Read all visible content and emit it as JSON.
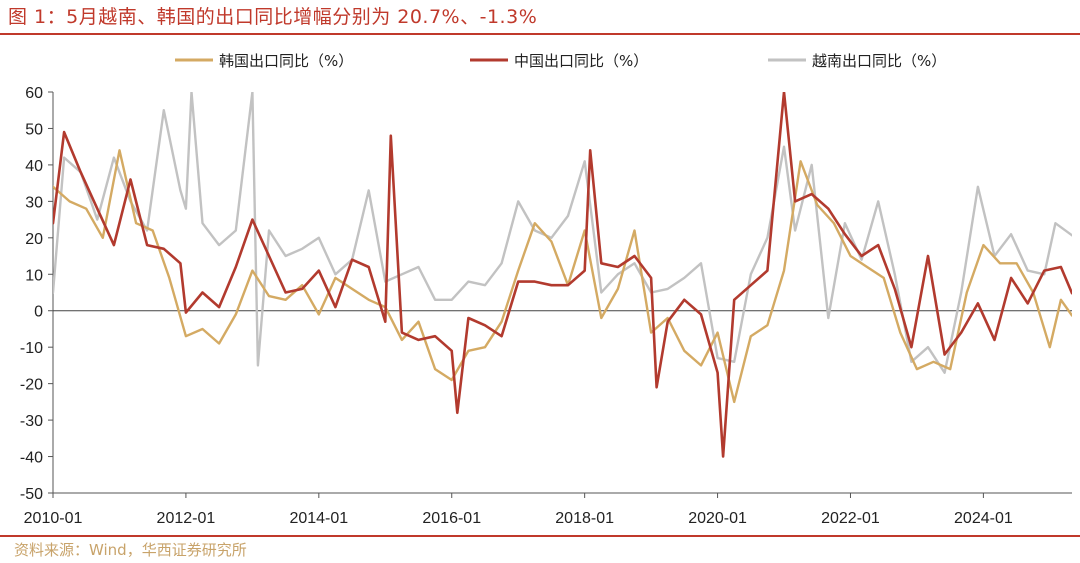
{
  "header": {
    "title": "图 1：5月越南、韩国的出口同比增幅分别为 20.7%、-1.3%"
  },
  "footer": {
    "source": "资料来源：Wind，华西证券研究所"
  },
  "colors": {
    "accent": "#c0392b",
    "korea": "#d4aa63",
    "china": "#b23a2e",
    "vietnam": "#c2c2c2"
  },
  "chart_data": {
    "type": "line",
    "title": "",
    "xlabel": "",
    "ylabel": "",
    "ylim": [
      -50,
      60
    ],
    "yticks": [
      -50,
      -40,
      -30,
      -20,
      -10,
      0,
      10,
      20,
      30,
      40,
      50,
      60
    ],
    "xlim": [
      "2010-01",
      "2025-05"
    ],
    "xticks": [
      "2010-01",
      "2012-01",
      "2014-01",
      "2016-01",
      "2018-01",
      "2020-01",
      "2022-01",
      "2024-01"
    ],
    "legend_position": "top",
    "grid": false,
    "series": [
      {
        "name": "韩国出口同比（%）",
        "color": "#d4aa63",
        "points": [
          [
            "2010-01",
            34
          ],
          [
            "2010-04",
            30
          ],
          [
            "2010-07",
            28
          ],
          [
            "2010-10",
            20
          ],
          [
            "2011-01",
            44
          ],
          [
            "2011-04",
            24
          ],
          [
            "2011-07",
            22
          ],
          [
            "2011-10",
            9
          ],
          [
            "2012-01",
            -7
          ],
          [
            "2012-04",
            -5
          ],
          [
            "2012-07",
            -9
          ],
          [
            "2012-10",
            -1
          ],
          [
            "2013-01",
            11
          ],
          [
            "2013-04",
            4
          ],
          [
            "2013-07",
            3
          ],
          [
            "2013-10",
            7
          ],
          [
            "2014-01",
            -1
          ],
          [
            "2014-04",
            9
          ],
          [
            "2014-07",
            6
          ],
          [
            "2014-10",
            3
          ],
          [
            "2015-01",
            1
          ],
          [
            "2015-04",
            -8
          ],
          [
            "2015-07",
            -3
          ],
          [
            "2015-10",
            -16
          ],
          [
            "2016-01",
            -19
          ],
          [
            "2016-04",
            -11
          ],
          [
            "2016-07",
            -10
          ],
          [
            "2016-10",
            -3
          ],
          [
            "2017-01",
            11
          ],
          [
            "2017-04",
            24
          ],
          [
            "2017-07",
            19
          ],
          [
            "2017-10",
            7
          ],
          [
            "2018-01",
            22
          ],
          [
            "2018-04",
            -2
          ],
          [
            "2018-07",
            6
          ],
          [
            "2018-10",
            22
          ],
          [
            "2019-01",
            -6
          ],
          [
            "2019-04",
            -2
          ],
          [
            "2019-07",
            -11
          ],
          [
            "2019-10",
            -15
          ],
          [
            "2020-01",
            -6
          ],
          [
            "2020-04",
            -25
          ],
          [
            "2020-07",
            -7
          ],
          [
            "2020-10",
            -4
          ],
          [
            "2021-01",
            11
          ],
          [
            "2021-04",
            41
          ],
          [
            "2021-07",
            29
          ],
          [
            "2021-10",
            24
          ],
          [
            "2022-01",
            15
          ],
          [
            "2022-04",
            12
          ],
          [
            "2022-07",
            9
          ],
          [
            "2022-10",
            -6
          ],
          [
            "2023-01",
            -16
          ],
          [
            "2023-04",
            -14
          ],
          [
            "2023-07",
            -16
          ],
          [
            "2023-10",
            5
          ],
          [
            "2024-01",
            18
          ],
          [
            "2024-04",
            13
          ],
          [
            "2024-07",
            13
          ],
          [
            "2024-10",
            5
          ],
          [
            "2025-01",
            -10
          ],
          [
            "2025-03",
            3
          ],
          [
            "2025-05",
            -1.3
          ]
        ]
      },
      {
        "name": "中国出口同比（%）",
        "color": "#b23a2e",
        "points": [
          [
            "2010-01",
            24
          ],
          [
            "2010-03",
            49
          ],
          [
            "2010-06",
            38
          ],
          [
            "2010-09",
            28
          ],
          [
            "2010-12",
            18
          ],
          [
            "2011-03",
            36
          ],
          [
            "2011-06",
            18
          ],
          [
            "2011-09",
            17
          ],
          [
            "2011-12",
            13
          ],
          [
            "2012-01",
            -0.5
          ],
          [
            "2012-04",
            5
          ],
          [
            "2012-07",
            1
          ],
          [
            "2012-10",
            12
          ],
          [
            "2013-01",
            25
          ],
          [
            "2013-04",
            15
          ],
          [
            "2013-07",
            5
          ],
          [
            "2013-10",
            6
          ],
          [
            "2014-01",
            11
          ],
          [
            "2014-04",
            1
          ],
          [
            "2014-07",
            14
          ],
          [
            "2014-10",
            12
          ],
          [
            "2015-01",
            -3
          ],
          [
            "2015-02",
            48
          ],
          [
            "2015-04",
            -6
          ],
          [
            "2015-07",
            -8
          ],
          [
            "2015-10",
            -7
          ],
          [
            "2016-01",
            -11
          ],
          [
            "2016-02",
            -28
          ],
          [
            "2016-04",
            -2
          ],
          [
            "2016-07",
            -4
          ],
          [
            "2016-10",
            -7
          ],
          [
            "2017-01",
            8
          ],
          [
            "2017-04",
            8
          ],
          [
            "2017-07",
            7
          ],
          [
            "2017-10",
            7
          ],
          [
            "2018-01",
            11
          ],
          [
            "2018-02",
            44
          ],
          [
            "2018-04",
            13
          ],
          [
            "2018-07",
            12
          ],
          [
            "2018-10",
            15
          ],
          [
            "2019-01",
            9
          ],
          [
            "2019-02",
            -21
          ],
          [
            "2019-04",
            -3
          ],
          [
            "2019-07",
            3
          ],
          [
            "2019-10",
            -1
          ],
          [
            "2020-01",
            -17
          ],
          [
            "2020-02",
            -40
          ],
          [
            "2020-04",
            3
          ],
          [
            "2020-07",
            7
          ],
          [
            "2020-10",
            11
          ],
          [
            "2021-01",
            60
          ],
          [
            "2021-03",
            30
          ],
          [
            "2021-06",
            32
          ],
          [
            "2021-09",
            28
          ],
          [
            "2021-12",
            21
          ],
          [
            "2022-03",
            15
          ],
          [
            "2022-06",
            18
          ],
          [
            "2022-09",
            6
          ],
          [
            "2022-12",
            -10
          ],
          [
            "2023-03",
            15
          ],
          [
            "2023-06",
            -12
          ],
          [
            "2023-09",
            -6
          ],
          [
            "2023-12",
            2
          ],
          [
            "2024-03",
            -8
          ],
          [
            "2024-06",
            9
          ],
          [
            "2024-09",
            2
          ],
          [
            "2024-12",
            11
          ],
          [
            "2025-03",
            12
          ],
          [
            "2025-05",
            4.8
          ]
        ]
      },
      {
        "name": "越南出口同比（%）",
        "color": "#c2c2c2",
        "points": [
          [
            "2010-01",
            5
          ],
          [
            "2010-03",
            42
          ],
          [
            "2010-06",
            38
          ],
          [
            "2010-09",
            25
          ],
          [
            "2010-12",
            42
          ],
          [
            "2011-03",
            30
          ],
          [
            "2011-06",
            22
          ],
          [
            "2011-09",
            55
          ],
          [
            "2011-12",
            33
          ],
          [
            "2012-01",
            28
          ],
          [
            "2012-02",
            60
          ],
          [
            "2012-04",
            24
          ],
          [
            "2012-07",
            18
          ],
          [
            "2012-10",
            22
          ],
          [
            "2013-01",
            60
          ],
          [
            "2013-02",
            -15
          ],
          [
            "2013-04",
            22
          ],
          [
            "2013-07",
            15
          ],
          [
            "2013-10",
            17
          ],
          [
            "2014-01",
            20
          ],
          [
            "2014-04",
            10
          ],
          [
            "2014-07",
            14
          ],
          [
            "2014-10",
            33
          ],
          [
            "2015-01",
            8
          ],
          [
            "2015-04",
            10
          ],
          [
            "2015-07",
            12
          ],
          [
            "2015-10",
            3
          ],
          [
            "2016-01",
            3
          ],
          [
            "2016-04",
            8
          ],
          [
            "2016-07",
            7
          ],
          [
            "2016-10",
            13
          ],
          [
            "2017-01",
            30
          ],
          [
            "2017-04",
            22
          ],
          [
            "2017-07",
            20
          ],
          [
            "2017-10",
            26
          ],
          [
            "2018-01",
            41
          ],
          [
            "2018-04",
            5
          ],
          [
            "2018-07",
            10
          ],
          [
            "2018-10",
            13
          ],
          [
            "2019-01",
            5
          ],
          [
            "2019-04",
            6
          ],
          [
            "2019-07",
            9
          ],
          [
            "2019-10",
            13
          ],
          [
            "2020-01",
            -13
          ],
          [
            "2020-04",
            -14
          ],
          [
            "2020-07",
            10
          ],
          [
            "2020-10",
            20
          ],
          [
            "2021-01",
            45
          ],
          [
            "2021-03",
            22
          ],
          [
            "2021-06",
            40
          ],
          [
            "2021-09",
            -2
          ],
          [
            "2021-12",
            24
          ],
          [
            "2022-03",
            14
          ],
          [
            "2022-06",
            30
          ],
          [
            "2022-09",
            10
          ],
          [
            "2022-12",
            -14
          ],
          [
            "2023-03",
            -10
          ],
          [
            "2023-06",
            -17
          ],
          [
            "2023-09",
            5
          ],
          [
            "2023-12",
            34
          ],
          [
            "2024-03",
            15
          ],
          [
            "2024-06",
            21
          ],
          [
            "2024-09",
            11
          ],
          [
            "2024-12",
            10
          ],
          [
            "2025-02",
            24
          ],
          [
            "2025-05",
            20.7
          ]
        ]
      }
    ]
  }
}
